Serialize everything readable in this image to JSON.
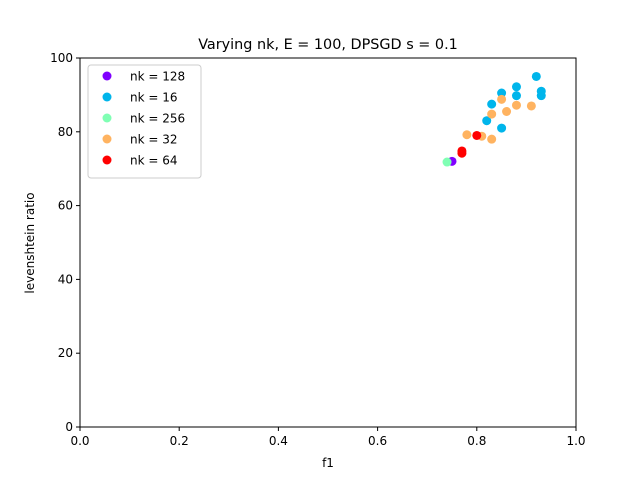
{
  "chart_data": {
    "type": "scatter",
    "title": "Varying nk, E = 100, DPSGD s = 0.1",
    "xlabel": "f1",
    "ylabel": "levenshtein ratio",
    "xlim": [
      0.0,
      1.0
    ],
    "ylim": [
      0,
      100
    ],
    "xticks": [
      "0.0",
      "0.2",
      "0.4",
      "0.6",
      "0.8",
      "1.0"
    ],
    "yticks": [
      "0",
      "20",
      "40",
      "60",
      "80",
      "100"
    ],
    "grid": false,
    "legend_position": "top-left",
    "series": [
      {
        "name": "nk = 128",
        "color": "#8000ff",
        "points": [
          [
            0.75,
            72.0
          ]
        ]
      },
      {
        "name": "nk = 16",
        "color": "#00b5eb",
        "points": [
          [
            0.92,
            95.0
          ],
          [
            0.88,
            92.2
          ],
          [
            0.93,
            91.0
          ],
          [
            0.85,
            90.5
          ],
          [
            0.88,
            89.8
          ],
          [
            0.93,
            89.8
          ],
          [
            0.83,
            87.5
          ],
          [
            0.82,
            83.0
          ],
          [
            0.85,
            81.0
          ]
        ]
      },
      {
        "name": "nk = 256",
        "color": "#80ffb4",
        "points": [
          [
            0.74,
            71.8
          ]
        ]
      },
      {
        "name": "nk = 32",
        "color": "#ffb360",
        "points": [
          [
            0.85,
            88.8
          ],
          [
            0.88,
            87.2
          ],
          [
            0.91,
            87.0
          ],
          [
            0.86,
            85.5
          ],
          [
            0.83,
            84.8
          ],
          [
            0.78,
            79.2
          ],
          [
            0.81,
            78.8
          ],
          [
            0.83,
            78.0
          ]
        ]
      },
      {
        "name": "nk = 64",
        "color": "#ff0000",
        "points": [
          [
            0.8,
            79.0
          ],
          [
            0.77,
            74.8
          ],
          [
            0.77,
            74.2
          ]
        ]
      }
    ]
  }
}
